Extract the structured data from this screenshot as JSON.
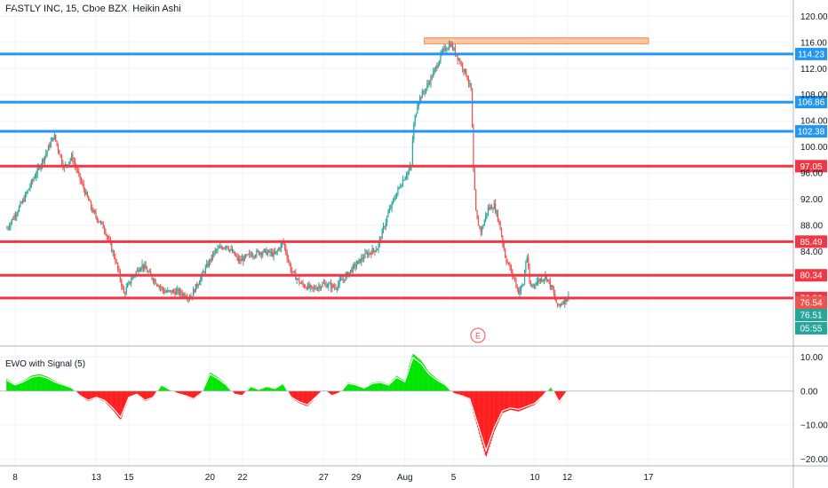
{
  "header": {
    "title": "FASTLY INC, 15, Cboe BZX, Heikin Ashi"
  },
  "indicator": {
    "title": "EWO with Signal (5)"
  },
  "colors": {
    "up": "#26a69a",
    "down": "#ef5350",
    "blue_line": "#2196f3",
    "red_line": "#f23645",
    "ewo_pos": "#00e600",
    "ewo_neg": "#ff1f1f",
    "grid": "#f0f3fa",
    "axis_text": "#131722",
    "zone_fill": "#f7c8a8",
    "zone_border": "#f08a4b",
    "earnings": "#ef5350"
  },
  "chart_data": [
    {
      "type": "candlestick",
      "title": "FASTLY INC, 15, Cboe BZX, Heikin Ashi",
      "ylim": [
        69.5,
        122.5
      ],
      "yticks": [
        120,
        116,
        112,
        108,
        104,
        100,
        96,
        92,
        88,
        84
      ],
      "ytick_labels": [
        "120.00",
        "116.00",
        "112.00",
        "108.00",
        "104.00",
        "100.00",
        "96.00",
        "92.00",
        "88.00",
        "84.00"
      ],
      "xticks": [
        "8",
        "13",
        "15",
        "20",
        "22",
        "27",
        "29",
        "Aug",
        "5",
        "10",
        "12",
        "17"
      ],
      "xtick_positions": [
        8,
        13,
        15,
        20,
        22,
        27,
        29,
        32,
        35,
        40,
        42,
        47
      ],
      "horizontal_levels": [
        {
          "value": 114.23,
          "label": "114.23",
          "color": "blue"
        },
        {
          "value": 106.86,
          "label": "106.86",
          "color": "blue"
        },
        {
          "value": 102.38,
          "label": "102.38",
          "color": "blue"
        },
        {
          "value": 97.05,
          "label": "97.05",
          "color": "red"
        },
        {
          "value": 85.49,
          "label": "85.49",
          "color": "red"
        },
        {
          "value": 80.34,
          "label": "80.34",
          "color": "red"
        },
        {
          "value": 76.86,
          "label": "76.86",
          "color": "red"
        }
      ],
      "price_labels": [
        {
          "value": 76.54,
          "label": "76.54",
          "color": "#ef5350"
        },
        {
          "value": 76.51,
          "label": "76.51",
          "color": "#26a69a"
        }
      ],
      "countdown": "05:55",
      "earnings_marker": {
        "label": "E",
        "x": 36.5
      },
      "zone": {
        "x": [
          33.2,
          47.0
        ],
        "y": [
          115.8,
          116.7
        ]
      },
      "price_path": [
        [
          7.5,
          87.5
        ],
        [
          8.5,
          91.8
        ],
        [
          9.2,
          95.5
        ],
        [
          9.8,
          98.5
        ],
        [
          10.4,
          101.8
        ],
        [
          11.0,
          96.8
        ],
        [
          11.5,
          98.5
        ],
        [
          12.0,
          95.0
        ],
        [
          12.8,
          90.0
        ],
        [
          13.5,
          87.5
        ],
        [
          14.2,
          82.5
        ],
        [
          14.7,
          77.5
        ],
        [
          15.2,
          80.0
        ],
        [
          15.8,
          82.0
        ],
        [
          16.5,
          79.8
        ],
        [
          17.2,
          77.8
        ],
        [
          18.0,
          77.8
        ],
        [
          18.8,
          77.0
        ],
        [
          19.5,
          80.3
        ],
        [
          20.3,
          84.0
        ],
        [
          21.0,
          85.0
        ],
        [
          21.8,
          82.5
        ],
        [
          22.5,
          83.5
        ],
        [
          23.3,
          84.0
        ],
        [
          24.0,
          83.5
        ],
        [
          24.5,
          85.5
        ],
        [
          25.0,
          81.0
        ],
        [
          25.6,
          79.0
        ],
        [
          26.3,
          78.2
        ],
        [
          27.0,
          79.0
        ],
        [
          27.7,
          78.5
        ],
        [
          28.3,
          80.0
        ],
        [
          29.0,
          82.0
        ],
        [
          29.6,
          83.5
        ],
        [
          30.3,
          84.5
        ],
        [
          31.0,
          90.0
        ],
        [
          31.5,
          93.0
        ],
        [
          32.0,
          95.5
        ],
        [
          32.4,
          97.0
        ],
        [
          32.5,
          102.5
        ],
        [
          32.8,
          107.0
        ],
        [
          33.3,
          109.0
        ],
        [
          33.8,
          111.5
        ],
        [
          34.3,
          114.5
        ],
        [
          34.8,
          115.8
        ],
        [
          35.3,
          113.5
        ],
        [
          35.8,
          111.0
        ],
        [
          36.1,
          108.5
        ],
        [
          36.2,
          97.0
        ],
        [
          36.4,
          89.0
        ],
        [
          36.7,
          87.0
        ],
        [
          37.1,
          90.5
        ],
        [
          37.5,
          91.0
        ],
        [
          37.8,
          88.5
        ],
        [
          38.2,
          83.0
        ],
        [
          38.7,
          80.0
        ],
        [
          39.0,
          77.8
        ],
        [
          39.3,
          79.0
        ],
        [
          39.5,
          83.8
        ],
        [
          39.7,
          78.5
        ],
        [
          40.2,
          79.5
        ],
        [
          40.7,
          80.2
        ],
        [
          41.1,
          78.0
        ],
        [
          41.4,
          75.5
        ],
        [
          41.8,
          76.5
        ],
        [
          42.1,
          77.0
        ]
      ]
    },
    {
      "type": "area",
      "title": "EWO with Signal (5)",
      "ylim": [
        -22,
        13
      ],
      "yticks": [
        10,
        0,
        -10,
        -20
      ],
      "ytick_labels": [
        "10.00",
        "0.00",
        "−10.00",
        "−20.00"
      ],
      "x": [
        7.5,
        8.0,
        8.5,
        9.0,
        9.5,
        10.0,
        10.5,
        11.0,
        11.5,
        12.0,
        12.5,
        13.0,
        13.5,
        14.0,
        14.5,
        15.0,
        15.5,
        16.0,
        16.5,
        17.0,
        17.5,
        18.0,
        18.5,
        19.0,
        19.5,
        20.0,
        20.5,
        21.0,
        21.5,
        22.0,
        22.5,
        23.0,
        23.5,
        24.0,
        24.5,
        25.0,
        25.5,
        26.0,
        26.5,
        27.0,
        27.5,
        28.0,
        28.5,
        29.0,
        29.5,
        30.0,
        30.5,
        31.0,
        31.5,
        32.0,
        32.5,
        33.0,
        33.5,
        34.0,
        34.5,
        35.0,
        35.5,
        36.0,
        36.5,
        37.0,
        37.5,
        38.0,
        38.5,
        39.0,
        39.5,
        40.0,
        40.5,
        41.0,
        41.5,
        42.0
      ],
      "values": [
        3.5,
        2.0,
        3.0,
        4.5,
        5.0,
        4.2,
        2.8,
        2.0,
        1.0,
        -1.5,
        -3.0,
        -2.0,
        -3.0,
        -5.5,
        -8.5,
        -2.0,
        -1.0,
        -3.0,
        -2.0,
        2.0,
        0.5,
        -0.8,
        -1.5,
        -2.5,
        -0.5,
        5.5,
        4.0,
        2.0,
        -1.0,
        -1.5,
        1.5,
        0.5,
        1.5,
        0.8,
        2.5,
        -2.0,
        -3.5,
        -4.5,
        -2.0,
        0.5,
        -1.5,
        -0.5,
        2.5,
        2.0,
        1.0,
        2.5,
        2.8,
        2.0,
        4.5,
        3.0,
        11.0,
        9.0,
        5.5,
        3.5,
        2.0,
        -0.8,
        -1.5,
        -2.5,
        -11.0,
        -19.5,
        -12.0,
        -6.5,
        -5.5,
        -6.0,
        -5.0,
        -4.0,
        -1.5,
        1.5,
        -3.5,
        0.0
      ]
    }
  ]
}
